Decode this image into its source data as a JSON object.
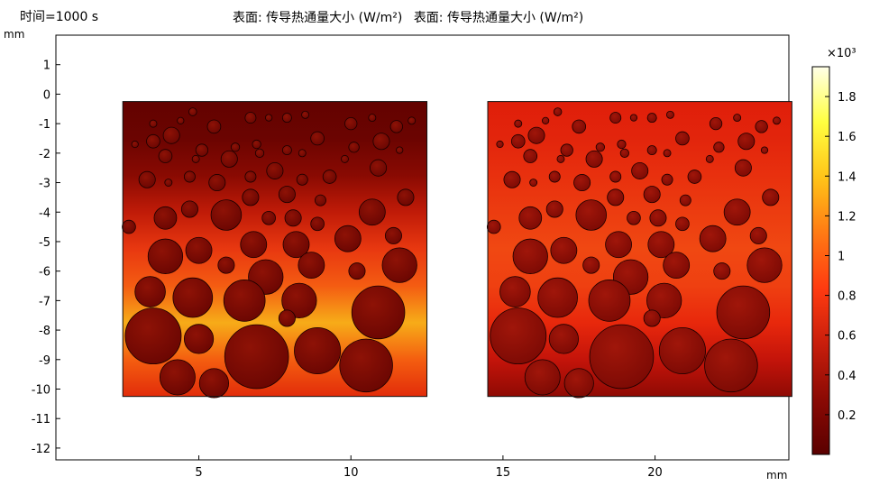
{
  "time_label": "时间=1000 s",
  "titles": [
    "表面: 传导热通量大小 (W/m²)",
    "表面: 传导热通量大小 (W/m²)"
  ],
  "x_unit": "mm",
  "y_unit": "mm",
  "colorbar": {
    "multiplier": "×10³",
    "ticks": [
      "0.2",
      "0.4",
      "0.6",
      "0.8",
      "1",
      "1.2",
      "1.4",
      "1.6",
      "1.8"
    ],
    "range": [
      0,
      1.95
    ],
    "colormap": [
      "#5a0000",
      "#8b0a04",
      "#c81e0c",
      "#ff3b10",
      "#ff7a14",
      "#ffc418",
      "#ffff40",
      "#ffffe8"
    ]
  },
  "chart_data": {
    "type": "heatmap",
    "xlim": [
      0.3,
      24.4
    ],
    "ylim": [
      -12.4,
      2
    ],
    "xticks": [
      5,
      10,
      15,
      20
    ],
    "yticks": [
      1,
      0,
      -1,
      -2,
      -3,
      -4,
      -5,
      -6,
      -7,
      -8,
      -9,
      -10,
      -11,
      -12
    ],
    "grid": false,
    "panels": [
      {
        "name": "left",
        "x": [
          2.5,
          12.5
        ],
        "y": [
          -10.25,
          -0.25
        ],
        "field_colors": [
          "#630200",
          "#6b0401",
          "#890a02",
          "#c01b08",
          "#e83810",
          "#f45c12",
          "#f7ac18",
          "#f45e10",
          "#e22c0a"
        ],
        "particles": [
          [
            3.5,
            -1.0,
            0.12
          ],
          [
            4.4,
            -0.9,
            0.11
          ],
          [
            4.8,
            -0.6,
            0.13
          ],
          [
            5.5,
            -1.1,
            0.22
          ],
          [
            6.7,
            -0.8,
            0.18
          ],
          [
            7.3,
            -0.8,
            0.11
          ],
          [
            7.9,
            -0.8,
            0.15
          ],
          [
            8.5,
            -0.7,
            0.12
          ],
          [
            10.0,
            -1.0,
            0.2
          ],
          [
            10.7,
            -0.8,
            0.12
          ],
          [
            11.5,
            -1.1,
            0.2
          ],
          [
            12.0,
            -0.9,
            0.12
          ],
          [
            2.9,
            -1.7,
            0.11
          ],
          [
            3.5,
            -1.6,
            0.22
          ],
          [
            4.1,
            -1.4,
            0.27
          ],
          [
            5.1,
            -1.9,
            0.2
          ],
          [
            6.2,
            -1.8,
            0.14
          ],
          [
            6.9,
            -1.7,
            0.14
          ],
          [
            7.9,
            -1.9,
            0.15
          ],
          [
            8.9,
            -1.5,
            0.22
          ],
          [
            10.1,
            -1.8,
            0.17
          ],
          [
            11.0,
            -1.6,
            0.27
          ],
          [
            11.6,
            -1.9,
            0.11
          ],
          [
            3.9,
            -2.1,
            0.22
          ],
          [
            4.9,
            -2.2,
            0.12
          ],
          [
            6.0,
            -2.2,
            0.27
          ],
          [
            7.0,
            -2.0,
            0.14
          ],
          [
            8.4,
            -2.0,
            0.12
          ],
          [
            9.8,
            -2.2,
            0.12
          ],
          [
            10.9,
            -2.5,
            0.27
          ],
          [
            3.3,
            -2.9,
            0.27
          ],
          [
            4.0,
            -3.0,
            0.12
          ],
          [
            4.7,
            -2.8,
            0.18
          ],
          [
            5.6,
            -3.0,
            0.27
          ],
          [
            6.7,
            -2.8,
            0.18
          ],
          [
            7.5,
            -2.6,
            0.27
          ],
          [
            8.4,
            -2.9,
            0.18
          ],
          [
            9.3,
            -2.8,
            0.22
          ],
          [
            6.7,
            -3.5,
            0.27
          ],
          [
            7.9,
            -3.4,
            0.27
          ],
          [
            9.0,
            -3.6,
            0.18
          ],
          [
            11.8,
            -3.5,
            0.27
          ],
          [
            2.7,
            -4.5,
            0.22
          ],
          [
            3.9,
            -4.2,
            0.37
          ],
          [
            4.7,
            -3.9,
            0.27
          ],
          [
            5.9,
            -4.1,
            0.5
          ],
          [
            7.3,
            -4.2,
            0.22
          ],
          [
            8.1,
            -4.2,
            0.27
          ],
          [
            8.9,
            -4.4,
            0.22
          ],
          [
            10.7,
            -4.0,
            0.43
          ],
          [
            3.9,
            -5.5,
            0.57
          ],
          [
            5.0,
            -5.3,
            0.43
          ],
          [
            6.8,
            -5.1,
            0.43
          ],
          [
            8.2,
            -5.1,
            0.43
          ],
          [
            9.9,
            -4.9,
            0.43
          ],
          [
            11.4,
            -4.8,
            0.27
          ],
          [
            5.9,
            -5.8,
            0.27
          ],
          [
            7.2,
            -6.2,
            0.57
          ],
          [
            8.7,
            -5.8,
            0.43
          ],
          [
            10.2,
            -6.0,
            0.27
          ],
          [
            11.6,
            -5.8,
            0.57
          ],
          [
            3.4,
            -6.7,
            0.5
          ],
          [
            4.8,
            -6.9,
            0.65
          ],
          [
            6.5,
            -7.0,
            0.68
          ],
          [
            8.3,
            -7.0,
            0.57
          ],
          [
            10.9,
            -7.4,
            0.87
          ],
          [
            7.9,
            -7.6,
            0.27
          ],
          [
            3.5,
            -8.2,
            0.92
          ],
          [
            5.0,
            -8.3,
            0.48
          ],
          [
            6.9,
            -8.9,
            1.05
          ],
          [
            8.9,
            -8.7,
            0.76
          ],
          [
            10.5,
            -9.2,
            0.87
          ],
          [
            4.3,
            -9.6,
            0.58
          ],
          [
            5.5,
            -9.8,
            0.48
          ]
        ]
      },
      {
        "name": "right",
        "x": [
          14.5,
          24.5
        ],
        "y": [
          -10.25,
          -0.25
        ],
        "field_colors": [
          "#e01e0a",
          "#e2250c",
          "#e8300e",
          "#ec3c10",
          "#f04812",
          "#ef4011",
          "#e8280c",
          "#c4140a",
          "#8f0a04"
        ],
        "particles": [
          [
            15.5,
            -1.0,
            0.12
          ],
          [
            16.4,
            -0.9,
            0.11
          ],
          [
            16.8,
            -0.6,
            0.13
          ],
          [
            17.5,
            -1.1,
            0.22
          ],
          [
            18.7,
            -0.8,
            0.18
          ],
          [
            19.3,
            -0.8,
            0.11
          ],
          [
            19.9,
            -0.8,
            0.15
          ],
          [
            20.5,
            -0.7,
            0.12
          ],
          [
            22.0,
            -1.0,
            0.2
          ],
          [
            22.7,
            -0.8,
            0.12
          ],
          [
            23.5,
            -1.1,
            0.2
          ],
          [
            24.0,
            -0.9,
            0.12
          ],
          [
            14.9,
            -1.7,
            0.11
          ],
          [
            15.5,
            -1.6,
            0.22
          ],
          [
            16.1,
            -1.4,
            0.27
          ],
          [
            17.1,
            -1.9,
            0.2
          ],
          [
            18.2,
            -1.8,
            0.14
          ],
          [
            18.9,
            -1.7,
            0.14
          ],
          [
            19.9,
            -1.9,
            0.15
          ],
          [
            20.9,
            -1.5,
            0.22
          ],
          [
            22.1,
            -1.8,
            0.17
          ],
          [
            23.0,
            -1.6,
            0.27
          ],
          [
            23.6,
            -1.9,
            0.11
          ],
          [
            15.9,
            -2.1,
            0.22
          ],
          [
            16.9,
            -2.2,
            0.12
          ],
          [
            18.0,
            -2.2,
            0.27
          ],
          [
            19.0,
            -2.0,
            0.14
          ],
          [
            20.4,
            -2.0,
            0.12
          ],
          [
            21.8,
            -2.2,
            0.12
          ],
          [
            22.9,
            -2.5,
            0.27
          ],
          [
            15.3,
            -2.9,
            0.27
          ],
          [
            16.0,
            -3.0,
            0.12
          ],
          [
            16.7,
            -2.8,
            0.18
          ],
          [
            17.6,
            -3.0,
            0.27
          ],
          [
            18.7,
            -2.8,
            0.18
          ],
          [
            19.5,
            -2.6,
            0.27
          ],
          [
            20.4,
            -2.9,
            0.18
          ],
          [
            21.3,
            -2.8,
            0.22
          ],
          [
            18.7,
            -3.5,
            0.27
          ],
          [
            19.9,
            -3.4,
            0.27
          ],
          [
            21.0,
            -3.6,
            0.18
          ],
          [
            23.8,
            -3.5,
            0.27
          ],
          [
            14.7,
            -4.5,
            0.22
          ],
          [
            15.9,
            -4.2,
            0.37
          ],
          [
            16.7,
            -3.9,
            0.27
          ],
          [
            17.9,
            -4.1,
            0.5
          ],
          [
            19.3,
            -4.2,
            0.22
          ],
          [
            20.1,
            -4.2,
            0.27
          ],
          [
            20.9,
            -4.4,
            0.22
          ],
          [
            22.7,
            -4.0,
            0.43
          ],
          [
            15.9,
            -5.5,
            0.57
          ],
          [
            17.0,
            -5.3,
            0.43
          ],
          [
            18.8,
            -5.1,
            0.43
          ],
          [
            20.2,
            -5.1,
            0.43
          ],
          [
            21.9,
            -4.9,
            0.43
          ],
          [
            23.4,
            -4.8,
            0.27
          ],
          [
            17.9,
            -5.8,
            0.27
          ],
          [
            19.2,
            -6.2,
            0.57
          ],
          [
            20.7,
            -5.8,
            0.43
          ],
          [
            22.2,
            -6.0,
            0.27
          ],
          [
            23.6,
            -5.8,
            0.57
          ],
          [
            15.4,
            -6.7,
            0.5
          ],
          [
            16.8,
            -6.9,
            0.65
          ],
          [
            18.5,
            -7.0,
            0.68
          ],
          [
            20.3,
            -7.0,
            0.57
          ],
          [
            22.9,
            -7.4,
            0.87
          ],
          [
            19.9,
            -7.6,
            0.27
          ],
          [
            15.5,
            -8.2,
            0.92
          ],
          [
            17.0,
            -8.3,
            0.48
          ],
          [
            18.9,
            -8.9,
            1.05
          ],
          [
            20.9,
            -8.7,
            0.76
          ],
          [
            22.5,
            -9.2,
            0.87
          ],
          [
            16.3,
            -9.6,
            0.58
          ],
          [
            17.5,
            -9.8,
            0.48
          ]
        ]
      }
    ]
  }
}
